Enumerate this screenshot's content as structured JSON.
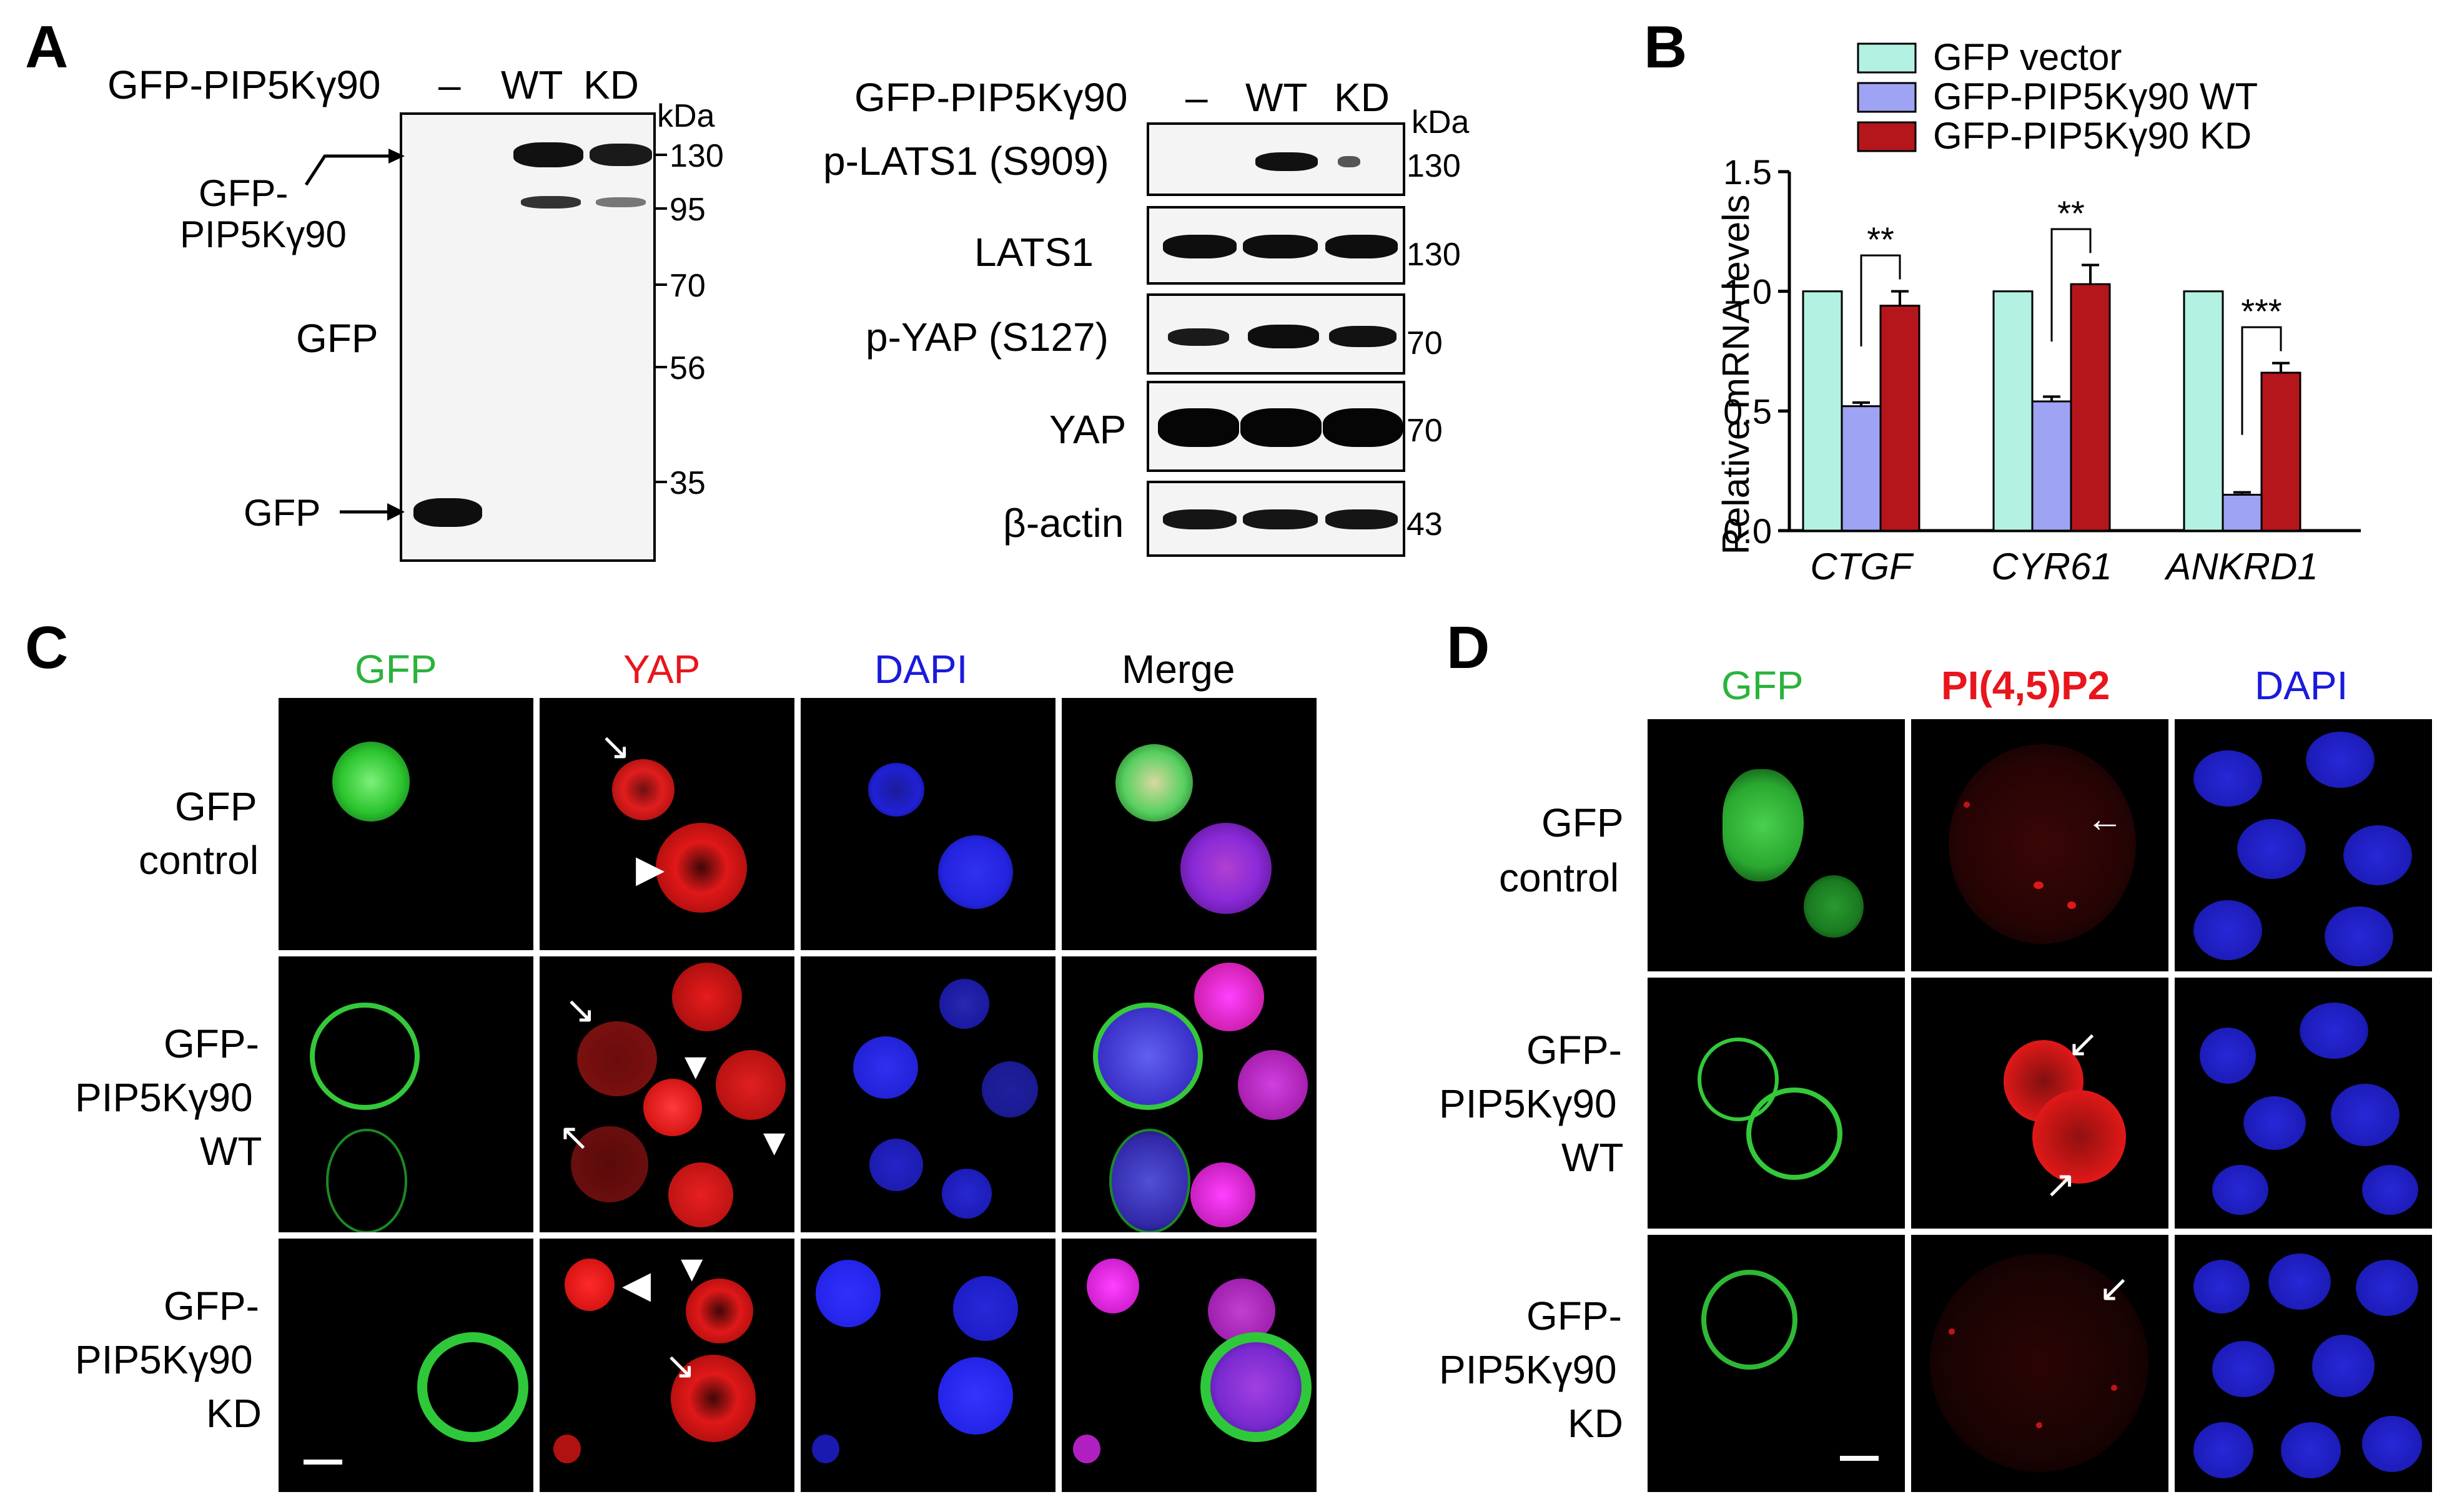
{
  "panelA": {
    "letter": "A",
    "left_blot": {
      "header_label": "GFP-PIP5Kγ90",
      "lanes": [
        "–",
        "WT",
        "KD"
      ],
      "unit": "kDa",
      "markers": [
        "130",
        "95",
        "70",
        "56",
        "35"
      ],
      "side_label_1": "GFP-",
      "side_label_2": "PIP5Kγ90",
      "antibody_label": "GFP",
      "gfp_arrow_label": "GFP"
    },
    "right_blot": {
      "header_label": "GFP-PIP5Kγ90",
      "lanes": [
        "–",
        "WT",
        "KD"
      ],
      "unit": "kDa",
      "rows": [
        {
          "label": "p-LATS1 (S909)",
          "marker": "130"
        },
        {
          "label": "LATS1",
          "marker": "130"
        },
        {
          "label": "p-YAP (S127)",
          "marker": "70"
        },
        {
          "label": "YAP",
          "marker": "70"
        },
        {
          "label": "β-actin",
          "marker": "43"
        }
      ]
    }
  },
  "panelB": {
    "letter": "B",
    "chart_data": {
      "type": "bar",
      "categories": [
        "CTGF",
        "CYR61",
        "ANKRD1"
      ],
      "series": [
        {
          "name": "GFP vector",
          "values": [
            1.0,
            1.0,
            1.0
          ],
          "errors": [
            0,
            0,
            0
          ]
        },
        {
          "name": "GFP-PIP5Kγ90 WT",
          "values": [
            0.52,
            0.54,
            0.15
          ],
          "errors": [
            0.015,
            0.02,
            0.01
          ]
        },
        {
          "name": "GFP-PIP5Kγ90 KD",
          "values": [
            0.94,
            1.03,
            0.66
          ],
          "errors": [
            0.06,
            0.08,
            0.04
          ]
        }
      ],
      "ylabel": "Relative mRNA levels",
      "ylim": [
        0,
        1.5
      ],
      "yticks": [
        "0.0",
        "0.5",
        "1.0",
        "1.5"
      ],
      "significance": [
        "**",
        "**",
        "***"
      ],
      "colors": [
        "#b3f1e2",
        "#9fa3f3",
        "#b5161c"
      ],
      "legend_position": "top"
    }
  },
  "panelC": {
    "letter": "C",
    "columns": [
      "GFP",
      "YAP",
      "DAPI",
      "Merge"
    ],
    "column_colors": [
      "#2ab33c",
      "#e8161c",
      "#1a1adc",
      "#000000"
    ],
    "rows": [
      {
        "line1": "GFP",
        "line2": "control",
        "line3": ""
      },
      {
        "line1": "GFP-",
        "line2": "PIP5Kγ90",
        "line3": "WT"
      },
      {
        "line1": "GFP-",
        "line2": "PIP5Kγ90",
        "line3": "KD"
      }
    ]
  },
  "panelD": {
    "letter": "D",
    "columns": [
      "GFP",
      "PI(4,5)P2",
      "DAPI"
    ],
    "column_colors": [
      "#2ab33c",
      "#e8161c",
      "#1a1adc"
    ],
    "rows": [
      {
        "line1": "GFP",
        "line2": "control",
        "line3": ""
      },
      {
        "line1": "GFP-",
        "line2": "PIP5Kγ90",
        "line3": "WT"
      },
      {
        "line1": "GFP-",
        "line2": "PIP5Kγ90",
        "line3": "KD"
      }
    ]
  }
}
